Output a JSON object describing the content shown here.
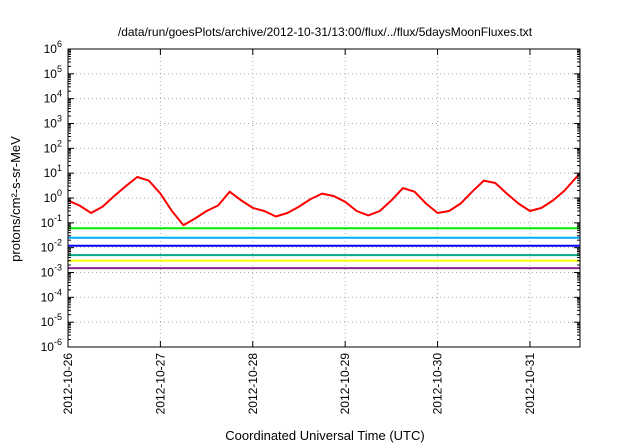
{
  "chart_data": {
    "type": "line",
    "title": "/data/run/goesPlots/archive/2012-10-31/13:00/flux/../flux/5daysMoonFluxes.txt",
    "xlabel": "Coordinated Universal Time (UTC)",
    "ylabel": "protons/cm²-s-sr-MeV",
    "y_scale": "log",
    "ylim": [
      1e-06,
      1000000.0
    ],
    "y_ticks": [
      {
        "base": "10",
        "exp": "-6",
        "value": 1e-06
      },
      {
        "base": "10",
        "exp": "-5",
        "value": 1e-05
      },
      {
        "base": "10",
        "exp": "-4",
        "value": 0.0001
      },
      {
        "base": "10",
        "exp": "-3",
        "value": 0.001
      },
      {
        "base": "10",
        "exp": "-2",
        "value": 0.01
      },
      {
        "base": "10",
        "exp": "-1",
        "value": 0.1
      },
      {
        "base": "10",
        "exp": "0",
        "value": 1
      },
      {
        "base": "10",
        "exp": "1",
        "value": 10
      },
      {
        "base": "10",
        "exp": "2",
        "value": 100
      },
      {
        "base": "10",
        "exp": "3",
        "value": 1000
      },
      {
        "base": "10",
        "exp": "4",
        "value": 10000
      },
      {
        "base": "10",
        "exp": "5",
        "value": 100000
      },
      {
        "base": "10",
        "exp": "6",
        "value": 1000000
      }
    ],
    "xlim": [
      "2012-10-26T00:00",
      "2012-10-31T13:00"
    ],
    "x_ticks": [
      "2012-10-26",
      "2012-10-27",
      "2012-10-28",
      "2012-10-29",
      "2012-10-30",
      "2012-10-31"
    ],
    "grid": true,
    "series": [
      {
        "color": "#ff0000",
        "x": [
          "2012-10-26T00:00",
          "2012-10-26T03:00",
          "2012-10-26T06:00",
          "2012-10-26T09:00",
          "2012-10-26T12:00",
          "2012-10-26T15:00",
          "2012-10-26T18:00",
          "2012-10-26T21:00",
          "2012-10-27T00:00",
          "2012-10-27T03:00",
          "2012-10-27T06:00",
          "2012-10-27T09:00",
          "2012-10-27T12:00",
          "2012-10-27T15:00",
          "2012-10-27T18:00",
          "2012-10-27T21:00",
          "2012-10-28T00:00",
          "2012-10-28T03:00",
          "2012-10-28T06:00",
          "2012-10-28T09:00",
          "2012-10-28T12:00",
          "2012-10-28T15:00",
          "2012-10-28T18:00",
          "2012-10-28T21:00",
          "2012-10-29T00:00",
          "2012-10-29T03:00",
          "2012-10-29T06:00",
          "2012-10-29T09:00",
          "2012-10-29T12:00",
          "2012-10-29T15:00",
          "2012-10-29T18:00",
          "2012-10-29T21:00",
          "2012-10-30T00:00",
          "2012-10-30T03:00",
          "2012-10-30T06:00",
          "2012-10-30T09:00",
          "2012-10-30T12:00",
          "2012-10-30T15:00",
          "2012-10-30T18:00",
          "2012-10-30T21:00",
          "2012-10-31T00:00",
          "2012-10-31T03:00",
          "2012-10-31T06:00",
          "2012-10-31T09:00",
          "2012-10-31T13:00"
        ],
        "values": [
          0.8,
          0.5,
          0.25,
          0.45,
          1.2,
          3,
          7,
          5,
          1.5,
          0.3,
          0.08,
          0.15,
          0.3,
          0.5,
          1.8,
          0.8,
          0.4,
          0.3,
          0.18,
          0.25,
          0.45,
          0.9,
          1.5,
          1.2,
          0.7,
          0.3,
          0.2,
          0.3,
          0.8,
          2.5,
          1.8,
          0.6,
          0.25,
          0.3,
          0.6,
          1.8,
          5,
          4,
          1.5,
          0.6,
          0.3,
          0.4,
          0.8,
          2,
          10
        ]
      },
      {
        "color": "#00ee00",
        "x": [
          "2012-10-26T00:00",
          "2012-10-27T00:00",
          "2012-10-28T00:00",
          "2012-10-29T00:00",
          "2012-10-30T00:00",
          "2012-10-31T00:00",
          "2012-10-31T13:00"
        ],
        "values": [
          0.06,
          0.06,
          0.06,
          0.06,
          0.06,
          0.06,
          0.06
        ]
      },
      {
        "color": "#00aaff",
        "x": [
          "2012-10-26T00:00",
          "2012-10-27T00:00",
          "2012-10-28T00:00",
          "2012-10-29T00:00",
          "2012-10-30T00:00",
          "2012-10-31T00:00",
          "2012-10-31T13:00"
        ],
        "values": [
          0.025,
          0.025,
          0.025,
          0.025,
          0.025,
          0.025,
          0.025
        ]
      },
      {
        "color": "#0000ff",
        "x": [
          "2012-10-26T00:00",
          "2012-10-27T00:00",
          "2012-10-28T00:00",
          "2012-10-29T00:00",
          "2012-10-30T00:00",
          "2012-10-31T00:00",
          "2012-10-31T13:00"
        ],
        "values": [
          0.012,
          0.012,
          0.012,
          0.012,
          0.012,
          0.012,
          0.012
        ]
      },
      {
        "color": "#00aa88",
        "x": [
          "2012-10-26T00:00",
          "2012-10-27T00:00",
          "2012-10-28T00:00",
          "2012-10-29T00:00",
          "2012-10-30T00:00",
          "2012-10-31T00:00",
          "2012-10-31T13:00"
        ],
        "values": [
          0.005,
          0.005,
          0.005,
          0.005,
          0.005,
          0.005,
          0.005
        ]
      },
      {
        "color": "#ffff00",
        "x": [
          "2012-10-26T00:00",
          "2012-10-27T00:00",
          "2012-10-28T00:00",
          "2012-10-29T00:00",
          "2012-10-30T00:00",
          "2012-10-31T00:00",
          "2012-10-31T13:00"
        ],
        "values": [
          0.003,
          0.003,
          0.003,
          0.003,
          0.003,
          0.003,
          0.003
        ]
      },
      {
        "color": "#882288",
        "x": [
          "2012-10-26T00:00",
          "2012-10-27T00:00",
          "2012-10-28T00:00",
          "2012-10-29T00:00",
          "2012-10-30T00:00",
          "2012-10-31T00:00",
          "2012-10-31T13:00"
        ],
        "values": [
          0.0015,
          0.0015,
          0.0015,
          0.0015,
          0.0015,
          0.0015,
          0.0015
        ]
      }
    ]
  }
}
